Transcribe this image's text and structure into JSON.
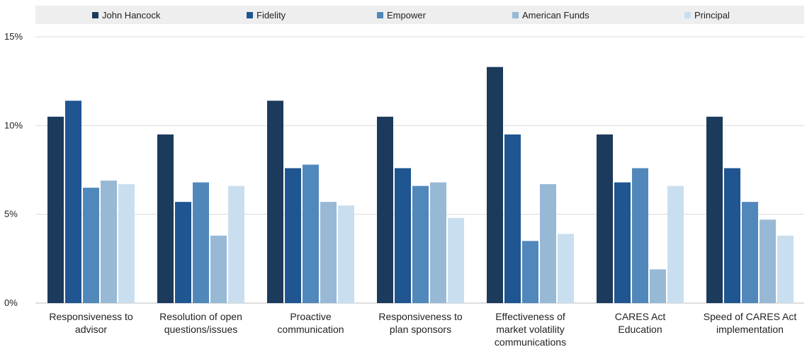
{
  "chart_data": {
    "type": "bar",
    "categories": [
      [
        "Responsiveness to",
        "advisor"
      ],
      [
        "Resolution of open",
        "questions/issues"
      ],
      [
        "Proactive",
        "communication"
      ],
      [
        "Responsiveness to",
        "plan sponsors"
      ],
      [
        "Effectiveness of",
        "market volatility",
        "communications"
      ],
      [
        "CARES Act",
        "Education"
      ],
      [
        "Speed of CARES Act",
        "implementation"
      ]
    ],
    "series": [
      {
        "name": "John Hancock",
        "color": "#1b3a5c",
        "values": [
          10.5,
          9.5,
          11.4,
          10.5,
          13.3,
          9.5,
          10.5
        ]
      },
      {
        "name": "Fidelity",
        "color": "#1f5590",
        "values": [
          11.4,
          5.7,
          7.6,
          7.6,
          9.5,
          6.8,
          7.6
        ]
      },
      {
        "name": "Empower",
        "color": "#5188bb",
        "values": [
          6.5,
          6.8,
          7.8,
          6.6,
          3.5,
          7.6,
          5.7
        ]
      },
      {
        "name": "American Funds",
        "color": "#97b9d6",
        "values": [
          6.9,
          3.8,
          5.7,
          6.8,
          6.7,
          1.9,
          4.7
        ]
      },
      {
        "name": "Principal",
        "color": "#c9dff0",
        "values": [
          6.7,
          6.6,
          5.5,
          4.8,
          3.9,
          6.6,
          3.8
        ]
      }
    ],
    "yticks": [
      "0%",
      "5%",
      "10%",
      "15%"
    ],
    "ylim": [
      0,
      15
    ],
    "legend_position": "top",
    "grid": true
  }
}
